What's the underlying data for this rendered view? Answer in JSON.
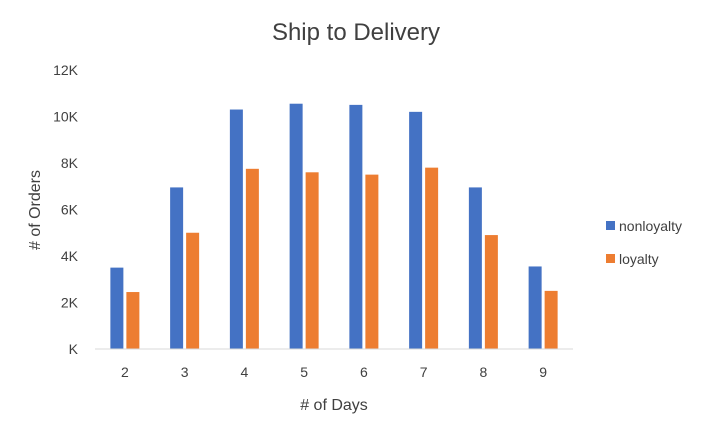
{
  "chart_data": {
    "type": "bar",
    "title": "Ship to Delivery",
    "xlabel": "# of Days",
    "ylabel": "# of Orders",
    "categories": [
      "2",
      "3",
      "4",
      "5",
      "6",
      "7",
      "8",
      "9"
    ],
    "series": [
      {
        "name": "nonloyalty",
        "color": "#4472C4",
        "values": [
          3500,
          6950,
          10300,
          10550,
          10500,
          10200,
          6950,
          3550
        ]
      },
      {
        "name": "loyalty",
        "color": "#ED7D31",
        "values": [
          2450,
          5000,
          7750,
          7600,
          7500,
          7800,
          4900,
          2500
        ]
      }
    ],
    "ylim": [
      0,
      12000
    ],
    "y_ticks": [
      0,
      2000,
      4000,
      6000,
      8000,
      10000,
      12000
    ],
    "y_tick_labels": [
      "K",
      "2K",
      "4K",
      "6K",
      "8K",
      "10K",
      "12K"
    ],
    "grid": false,
    "legend_position": "right"
  }
}
